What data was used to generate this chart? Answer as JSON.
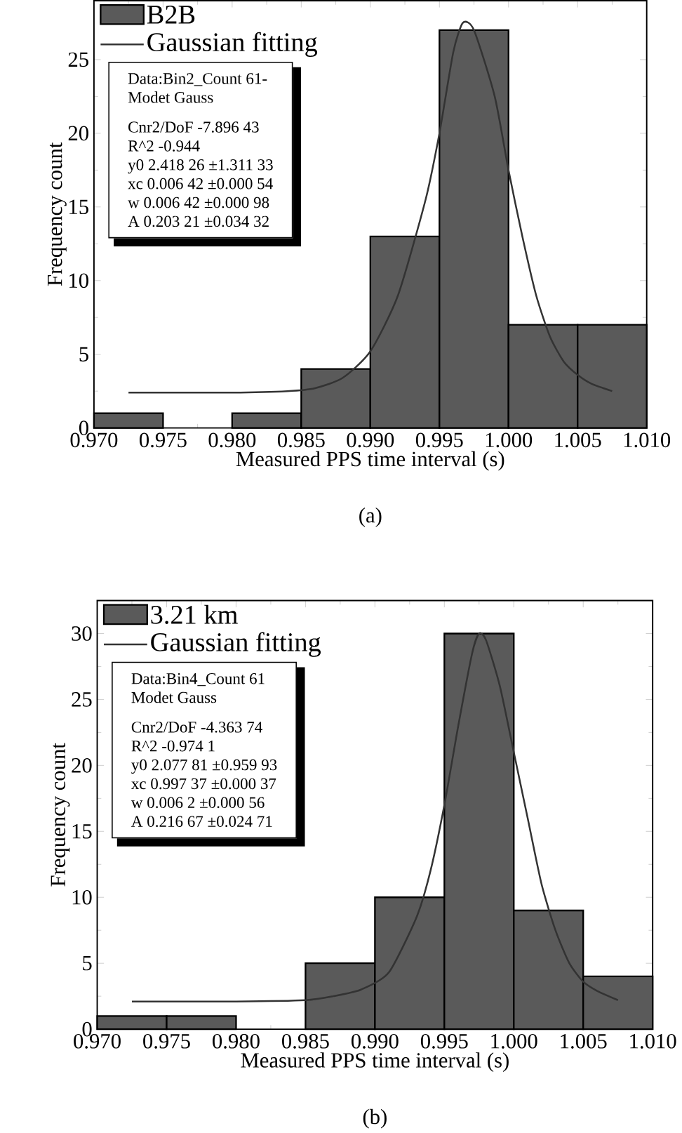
{
  "chart_data": [
    {
      "type": "histogram",
      "xlabel": "Measured PPS time interval (s)",
      "ylabel": "Frequency count",
      "legend": "top left",
      "bins": [
        0.97,
        0.975,
        0.98,
        0.985,
        0.99,
        0.995,
        1.0,
        1.005,
        1.01
      ],
      "series": [
        {
          "name": "B2B",
          "color": "#5a5a5a",
          "values": [
            1,
            0,
            1,
            4,
            13,
            27,
            7,
            7
          ]
        },
        {
          "type": "line",
          "name": "Gaussian fitting",
          "color": "#333333",
          "x": [
            0.9725,
            0.98,
            0.984,
            0.986,
            0.988,
            0.99,
            0.992,
            0.994,
            0.995,
            0.996,
            0.9967,
            0.9975,
            0.999,
            1.0,
            1.001,
            1.002,
            1.003,
            1.004,
            1.005,
            1.006,
            1.0075
          ],
          "values": [
            2.4,
            2.4,
            2.5,
            2.7,
            3.4,
            5.2,
            9.0,
            15.5,
            20.0,
            25.5,
            27.5,
            27.0,
            22.5,
            17.5,
            13.0,
            9.0,
            6.2,
            4.5,
            3.6,
            3.0,
            2.5
          ]
        }
      ],
      "xlim": [
        0.97,
        1.01
      ],
      "ylim": [
        0,
        29
      ],
      "xticks": [
        {
          "value": 0.97,
          "label": "0.970"
        },
        {
          "value": 0.975,
          "label": "0.975"
        },
        {
          "value": 0.98,
          "label": "0.980"
        },
        {
          "value": 0.985,
          "label": "0.985"
        },
        {
          "value": 0.99,
          "label": "0.990"
        },
        {
          "value": 0.995,
          "label": "0.995"
        },
        {
          "value": 1.0,
          "label": "1.000"
        },
        {
          "value": 1.005,
          "label": "1.005"
        },
        {
          "value": 1.01,
          "label": "1.010"
        }
      ],
      "yticks": [
        0,
        5,
        10,
        15,
        20,
        25
      ],
      "annotations": [
        "Data:Bin2_Count 61-",
        "Modet Gauss",
        "Cnr2/DoF    -7.896 43",
        "R^2  -0.944",
        "y0   2.418 26   ±1.311 33",
        "xc   0.006 42   ±0.000 54",
        "w    0.006 42   ±0.000 98",
        "A    0.203 21   ±0.034 32",
        "(a)"
      ]
    },
    {
      "type": "histogram",
      "xlabel": "Measured PPS time interval (s)",
      "ylabel": "Frequency count",
      "legend": "top left",
      "bins": [
        0.97,
        0.975,
        0.98,
        0.985,
        0.99,
        0.995,
        1.0,
        1.005,
        1.01
      ],
      "series": [
        {
          "name": "3.21 km",
          "color": "#5a5a5a",
          "values": [
            1,
            1,
            0,
            5,
            10,
            30,
            9,
            4
          ]
        },
        {
          "type": "line",
          "name": "Gaussian fitting",
          "color": "#333333",
          "x": [
            0.9725,
            0.98,
            0.985,
            0.987,
            0.989,
            0.991,
            0.993,
            0.994,
            0.995,
            0.996,
            0.997,
            0.9975,
            0.998,
            0.999,
            1.0,
            1.001,
            1.002,
            1.003,
            1.004,
            1.005,
            1.006,
            1.0075
          ],
          "values": [
            2.1,
            2.1,
            2.2,
            2.5,
            3.0,
            4.3,
            8.5,
            12.0,
            17.0,
            23.0,
            28.5,
            30.0,
            29.5,
            26.0,
            21.0,
            16.0,
            11.0,
            7.5,
            5.0,
            3.6,
            2.9,
            2.2
          ]
        }
      ],
      "xlim": [
        0.97,
        1.01
      ],
      "ylim": [
        0,
        32.5
      ],
      "xticks": [
        {
          "value": 0.97,
          "label": "0.970"
        },
        {
          "value": 0.975,
          "label": "0.975"
        },
        {
          "value": 0.98,
          "label": "0.980"
        },
        {
          "value": 0.985,
          "label": "0.985"
        },
        {
          "value": 0.99,
          "label": "0.990"
        },
        {
          "value": 0.995,
          "label": "0.995"
        },
        {
          "value": 1.0,
          "label": "1.000"
        },
        {
          "value": 1.005,
          "label": "1.005"
        },
        {
          "value": 1.01,
          "label": "1.010"
        }
      ],
      "yticks": [
        0,
        5,
        10,
        15,
        20,
        25,
        30
      ],
      "annotations": [
        "Data:Bin4_Count 61",
        "Modet Gauss",
        "Cnr2/DoF    -4.363 74",
        "R^2  -0.974 1",
        "y0   2.077 81   ±0.959 93",
        "xc   0.997 37   ±0.000 37",
        "w    0.006 2    ±0.000 56",
        "A    0.216 67   ±0.024 71",
        "(b)"
      ]
    }
  ]
}
